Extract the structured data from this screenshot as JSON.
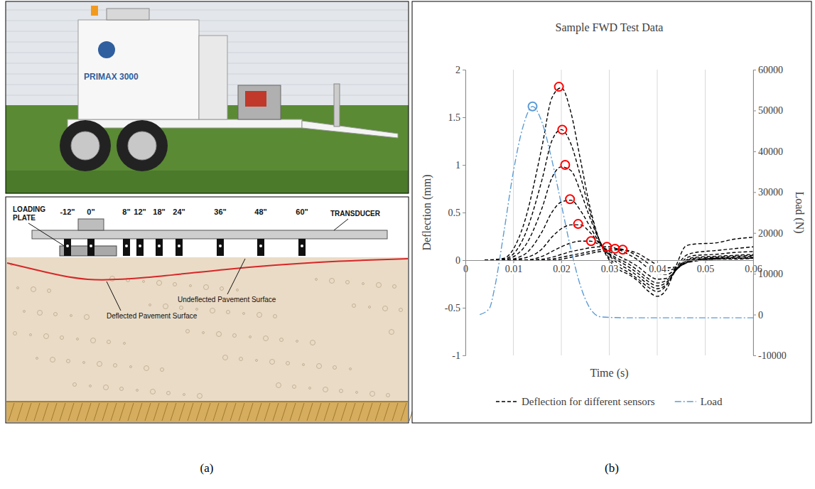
{
  "panel_labels": [
    "(a)",
    "(b)"
  ],
  "photo": {
    "text": "PRIMAX 3000"
  },
  "diagram": {
    "loading_plate": "LOADING PLATE",
    "transducer": "TRANSDUCER",
    "undeflected": "Undeflected Pavement Surface",
    "deflected": "Deflected Pavement Surface",
    "sensor_offsets": [
      "-12\"",
      "0\"",
      "8\"",
      "12\"",
      "18\"",
      "24\"",
      "36\"",
      "48\"",
      "60\""
    ]
  },
  "chart_data": {
    "type": "line",
    "title": "Sample FWD Test Data",
    "x_label": "Time (s)",
    "y_label": "Deflection (mm)",
    "y2_label": "Load (N)",
    "xlim": [
      0,
      0.06
    ],
    "xticks": [
      0,
      0.01,
      0.02,
      0.03,
      0.04,
      0.05,
      0.06
    ],
    "ylim": [
      -1,
      2
    ],
    "yticks": [
      -1,
      -0.5,
      0,
      0.5,
      1,
      1.5,
      2
    ],
    "y2lim": [
      -10000,
      60000
    ],
    "y2ticks": [
      -10000,
      0,
      10000,
      20000,
      30000,
      40000,
      50000,
      60000
    ],
    "grid": "x",
    "legend": "bottom",
    "x": [
      0.004,
      0.008,
      0.012,
      0.016,
      0.018,
      0.02,
      0.022,
      0.024,
      0.026,
      0.028,
      0.03,
      0.032,
      0.034,
      0.036,
      0.038,
      0.04,
      0.042,
      0.044,
      0.046,
      0.048,
      0.052,
      0.056,
      0.06
    ],
    "series": [
      {
        "name": "Deflection for different sensors",
        "color": "#000000",
        "line_style": "dashed",
        "marker": "circle",
        "sensors": [
          {
            "values": [
              0,
              0.02,
              0.35,
              1.2,
              1.7,
              1.81,
              1.55,
              1.05,
              0.55,
              0.2,
              0,
              -0.1,
              -0.15,
              -0.22,
              -0.32,
              -0.38,
              -0.3,
              -0.05,
              0.15,
              0.17,
              0.18,
              0.22,
              0.24
            ],
            "peak": {
              "x": 0.0195,
              "y": 1.82
            }
          },
          {
            "values": [
              0,
              0.01,
              0.22,
              0.85,
              1.25,
              1.37,
              1.22,
              0.88,
              0.5,
              0.2,
              0.02,
              -0.07,
              -0.13,
              -0.2,
              -0.28,
              -0.33,
              -0.26,
              -0.08,
              0.05,
              0.08,
              0.1,
              0.12,
              0.14
            ],
            "peak": {
              "x": 0.0202,
              "y": 1.37
            }
          },
          {
            "values": [
              0,
              0.005,
              0.12,
              0.55,
              0.86,
              0.98,
              0.94,
              0.72,
              0.44,
              0.2,
              0.05,
              -0.04,
              -0.1,
              -0.17,
              -0.25,
              -0.3,
              -0.25,
              -0.1,
              0.02,
              0.05,
              0.06,
              0.08,
              0.09
            ],
            "peak": {
              "x": 0.0208,
              "y": 1.0
            }
          },
          {
            "values": [
              0,
              0,
              0.05,
              0.3,
              0.5,
              0.61,
              0.63,
              0.52,
              0.35,
              0.18,
              0.06,
              -0.01,
              -0.07,
              -0.14,
              -0.22,
              -0.27,
              -0.23,
              -0.1,
              0,
              0.03,
              0.04,
              0.05,
              0.06
            ],
            "peak": {
              "x": 0.0218,
              "y": 0.64
            }
          },
          {
            "values": [
              0,
              0,
              0.02,
              0.12,
              0.24,
              0.33,
              0.37,
              0.37,
              0.29,
              0.17,
              0.07,
              0.01,
              -0.04,
              -0.11,
              -0.19,
              -0.24,
              -0.21,
              -0.1,
              -0.01,
              0.02,
              0.03,
              0.04,
              0.05
            ],
            "peak": {
              "x": 0.0235,
              "y": 0.38
            }
          },
          {
            "values": [
              0,
              0,
              0,
              0.04,
              0.09,
              0.14,
              0.18,
              0.2,
              0.2,
              0.16,
              0.09,
              0.04,
              -0.01,
              -0.07,
              -0.15,
              -0.2,
              -0.19,
              -0.1,
              -0.02,
              0.01,
              0.02,
              0.03,
              0.04
            ],
            "peak": {
              "x": 0.0262,
              "y": 0.2
            }
          },
          {
            "values": [
              0,
              0,
              0,
              0.01,
              0.03,
              0.06,
              0.09,
              0.11,
              0.13,
              0.14,
              0.14,
              0.11,
              0.06,
              0,
              -0.08,
              -0.14,
              -0.15,
              -0.09,
              -0.03,
              0,
              0.02,
              0.02,
              0.03
            ],
            "peak": {
              "x": 0.0295,
              "y": 0.14
            }
          },
          {
            "values": [
              0,
              0,
              0,
              0,
              0.01,
              0.03,
              0.05,
              0.07,
              0.09,
              0.11,
              0.12,
              0.12,
              0.09,
              0.04,
              -0.03,
              -0.09,
              -0.11,
              -0.08,
              -0.03,
              0,
              0.01,
              0.02,
              0.02
            ],
            "peak": {
              "x": 0.0312,
              "y": 0.12
            }
          },
          {
            "values": [
              0,
              0,
              0,
              0,
              0,
              0.01,
              0.03,
              0.05,
              0.07,
              0.09,
              0.1,
              0.11,
              0.1,
              0.07,
              0.01,
              -0.05,
              -0.08,
              -0.07,
              -0.03,
              -0.01,
              0.01,
              0.01,
              0.02
            ],
            "peak": {
              "x": 0.0328,
              "y": 0.11
            }
          }
        ]
      },
      {
        "name": "Load",
        "color": "#5b9bd5",
        "line_style": "dashdot",
        "marker": "circle",
        "axis": "y2",
        "x": [
          0.003,
          0.005,
          0.006,
          0.008,
          0.01,
          0.012,
          0.014,
          0.016,
          0.018,
          0.02,
          0.022,
          0.024,
          0.026,
          0.028,
          0.03,
          0.035,
          0.04,
          0.05,
          0.06
        ],
        "values": [
          0,
          1500,
          6000,
          20000,
          35000,
          46000,
          51000,
          47000,
          38000,
          27000,
          16000,
          7000,
          1500,
          -500,
          -700,
          -800,
          -800,
          -800,
          -800
        ],
        "peak": {
          "x": 0.014,
          "y": 51000
        }
      }
    ]
  }
}
